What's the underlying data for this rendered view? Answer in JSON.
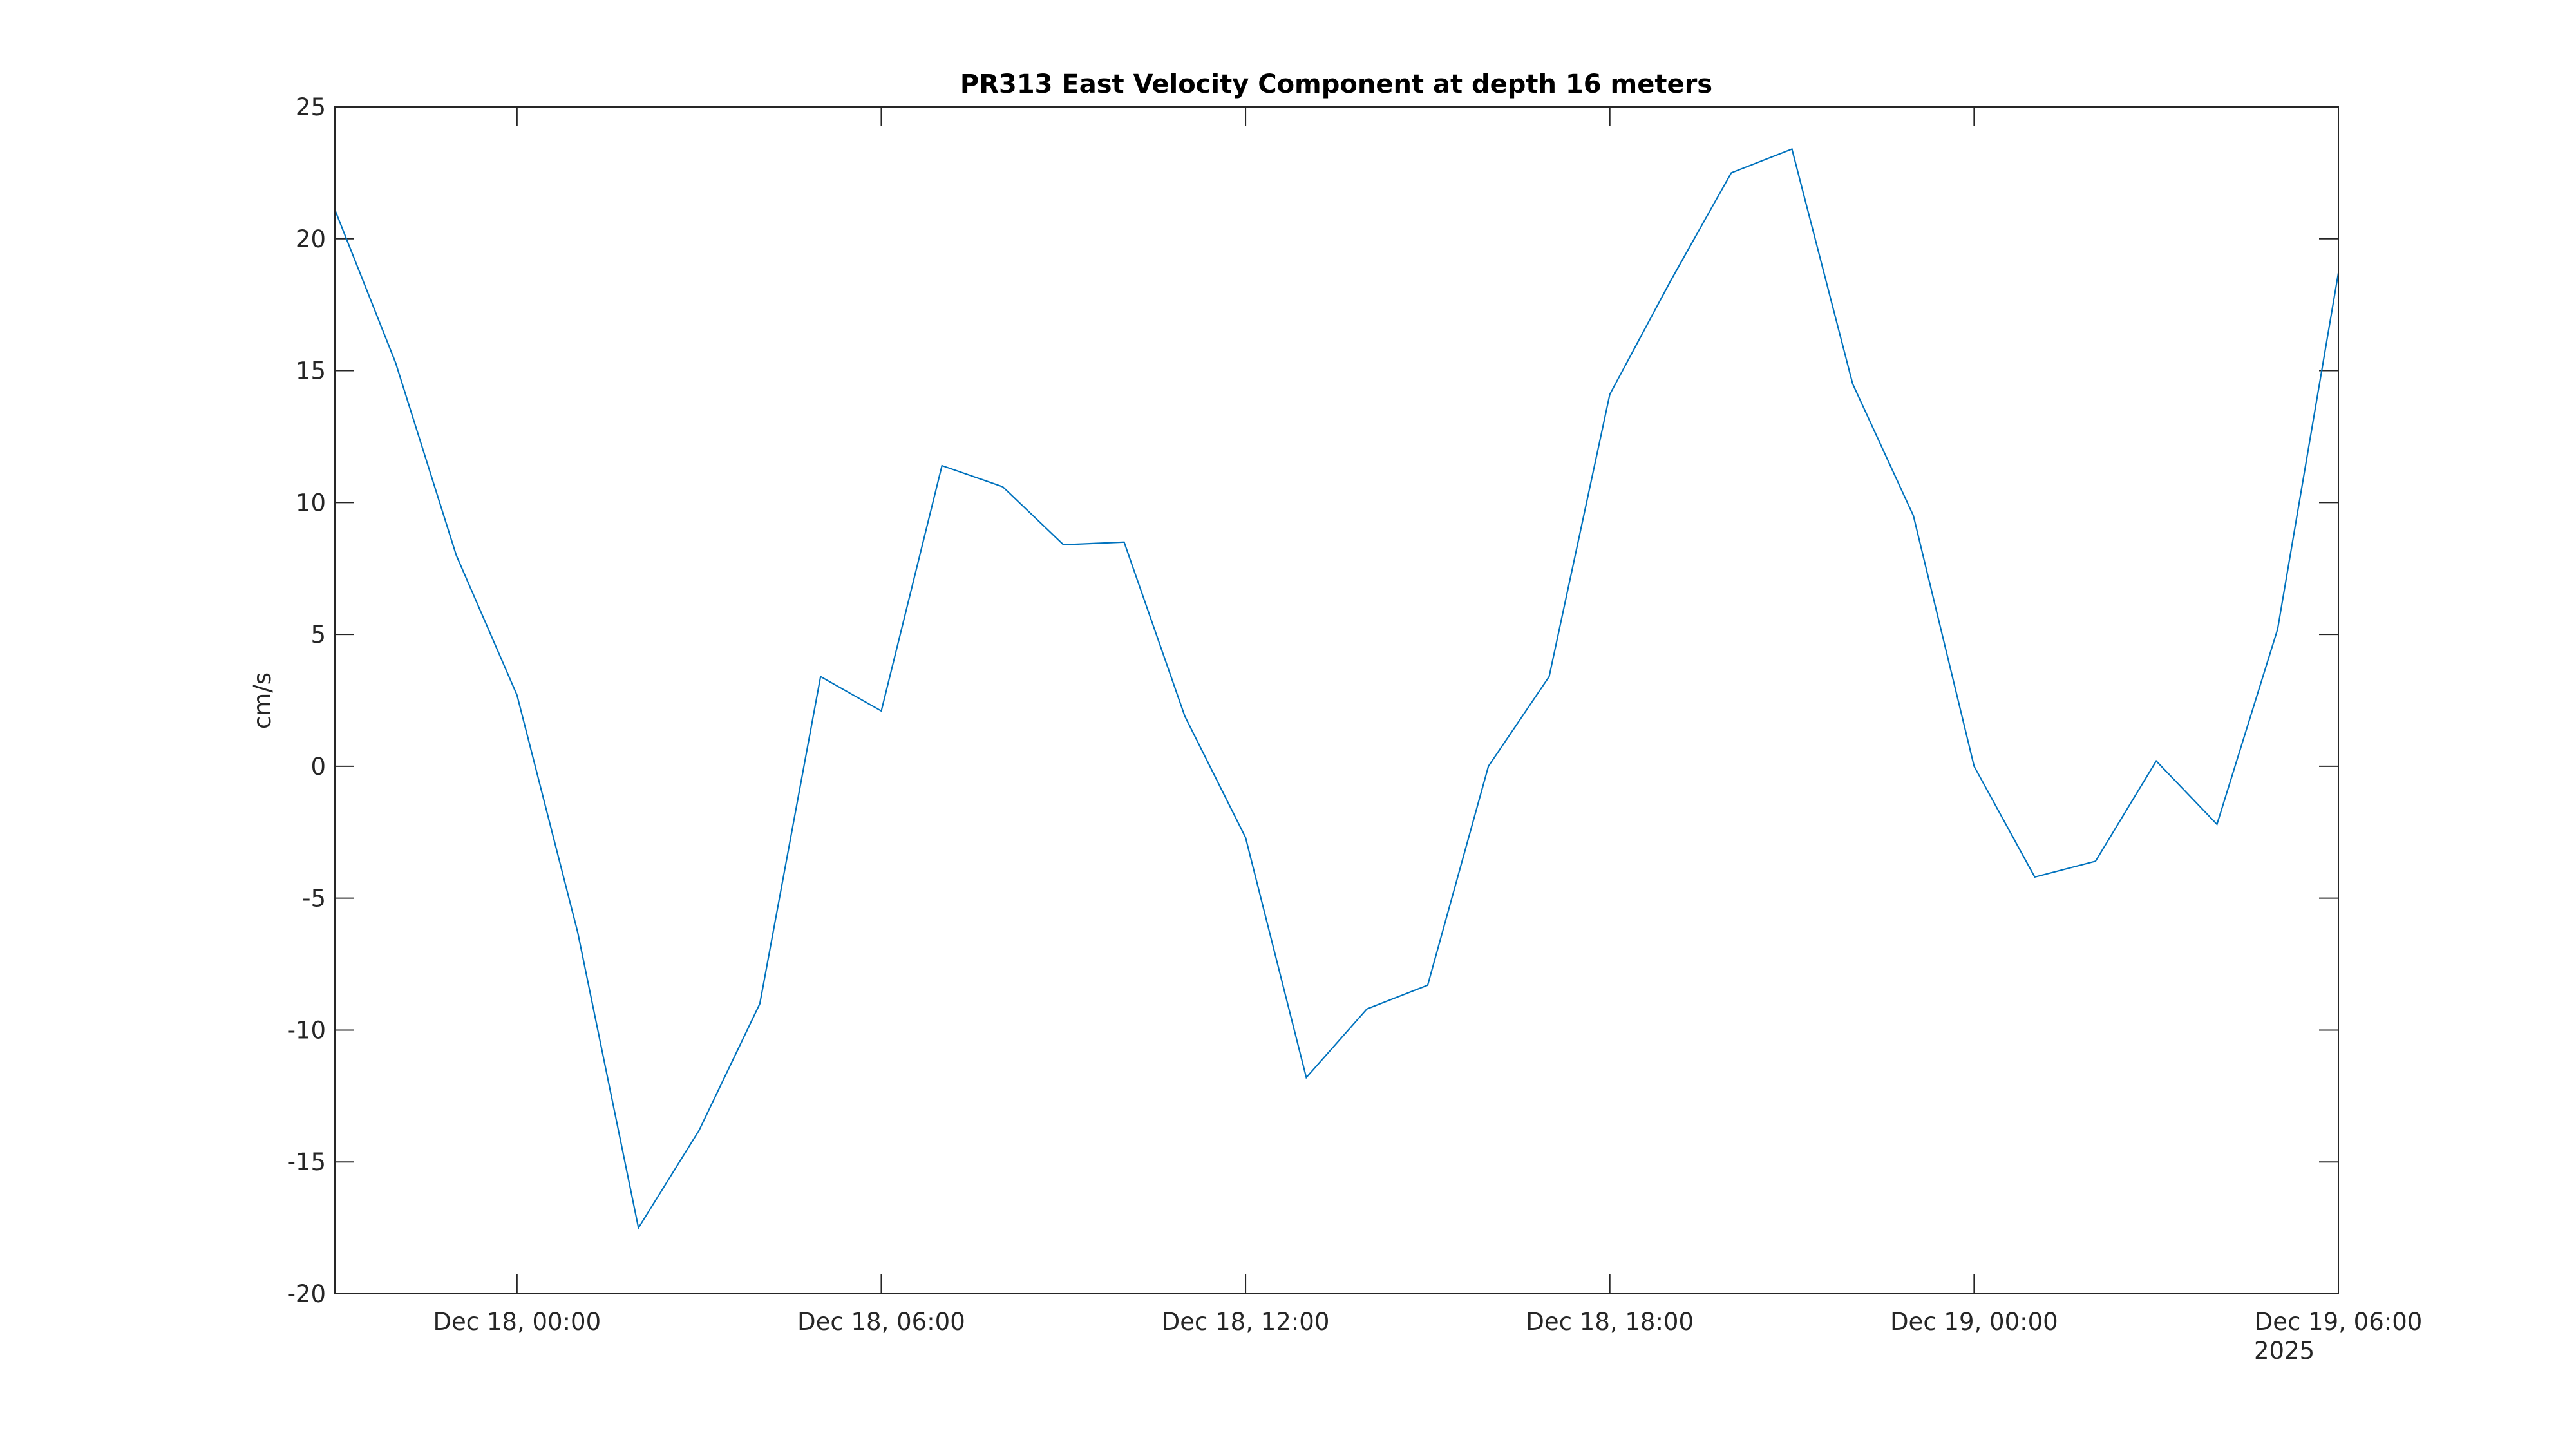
{
  "chart_data": {
    "type": "line",
    "title": "PR313 East Velocity Component at depth 16 meters",
    "xlabel": "",
    "ylabel": "cm/s",
    "ylim": [
      -20,
      25
    ],
    "xlim": [
      "2025-12-17 21:00",
      "2025-12-19 06:00"
    ],
    "grid": false,
    "line_color": "#0072BD",
    "yticks": [
      -20,
      -15,
      -10,
      -5,
      0,
      5,
      10,
      15,
      20,
      25
    ],
    "xticks": [
      {
        "time": "2025-12-18 00:00",
        "label": "Dec 18, 00:00"
      },
      {
        "time": "2025-12-18 06:00",
        "label": "Dec 18, 06:00"
      },
      {
        "time": "2025-12-18 12:00",
        "label": "Dec 18, 12:00"
      },
      {
        "time": "2025-12-18 18:00",
        "label": "Dec 18, 18:00"
      },
      {
        "time": "2025-12-19 00:00",
        "label": "Dec 19, 00:00"
      },
      {
        "time": "2025-12-19 06:00",
        "label": "Dec 19, 06:00"
      }
    ],
    "year_label": "2025",
    "series": [
      {
        "x": [
          "2025-12-17 21:00",
          "2025-12-17 22:00",
          "2025-12-17 23:00",
          "2025-12-18 00:00",
          "2025-12-18 01:00",
          "2025-12-18 02:00",
          "2025-12-18 03:00",
          "2025-12-18 04:00",
          "2025-12-18 05:00",
          "2025-12-18 06:00",
          "2025-12-18 07:00",
          "2025-12-18 08:00",
          "2025-12-18 09:00",
          "2025-12-18 10:00",
          "2025-12-18 11:00",
          "2025-12-18 12:00",
          "2025-12-18 13:00",
          "2025-12-18 14:00",
          "2025-12-18 15:00",
          "2025-12-18 16:00",
          "2025-12-18 17:00",
          "2025-12-18 18:00",
          "2025-12-18 19:00",
          "2025-12-18 20:00",
          "2025-12-18 21:00",
          "2025-12-18 22:00",
          "2025-12-18 23:00",
          "2025-12-19 00:00",
          "2025-12-19 01:00",
          "2025-12-19 02:00",
          "2025-12-19 03:00",
          "2025-12-19 04:00",
          "2025-12-19 05:00",
          "2025-12-19 06:00"
        ],
        "y": [
          21.1,
          15.3,
          8.0,
          2.7,
          -6.3,
          -17.5,
          -13.8,
          -9.0,
          3.4,
          2.1,
          11.4,
          10.6,
          8.4,
          8.5,
          1.9,
          -2.7,
          -11.8,
          -9.2,
          -8.3,
          0.0,
          3.4,
          14.1,
          18.4,
          22.5,
          23.4,
          14.5,
          9.5,
          0.0,
          -4.2,
          -3.6,
          0.2,
          -2.2,
          5.2,
          18.7
        ]
      }
    ]
  }
}
